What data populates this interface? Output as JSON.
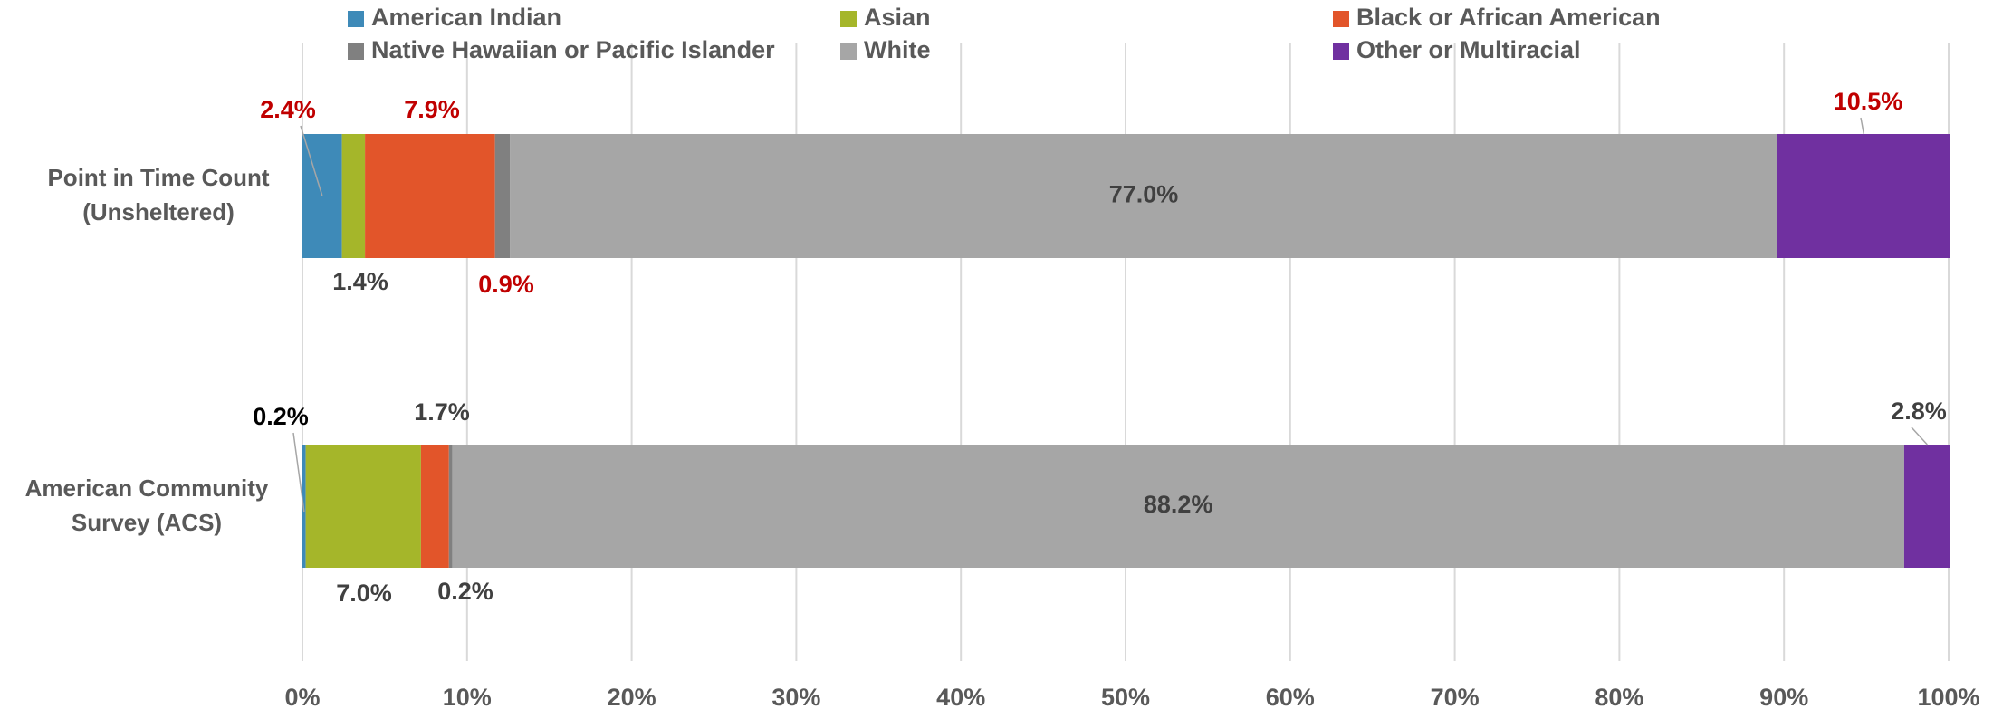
{
  "chart_data": {
    "type": "stacked_barh",
    "categories": [
      "Point in Time Count (Unsheltered)",
      "American Community Survey (ACS)"
    ],
    "series": [
      {
        "name": "American Indian",
        "color": "#3e8ab8",
        "values": [
          2.4,
          0.2
        ],
        "value_labels": [
          "2.4%",
          "0.2%"
        ],
        "label_colors": [
          "#c00000",
          "#000000"
        ]
      },
      {
        "name": "Asian",
        "color": "#a5b62a",
        "values": [
          1.4,
          7.0
        ],
        "value_labels": [
          "1.4%",
          "7.0%"
        ],
        "label_colors": [
          "#404040",
          "#404040"
        ]
      },
      {
        "name": "Black or African American",
        "color": "#e2552a",
        "values": [
          7.9,
          1.7
        ],
        "value_labels": [
          "7.9%",
          "1.7%"
        ],
        "label_colors": [
          "#c00000",
          "#404040"
        ]
      },
      {
        "name": "Native Hawaiian or Pacific Islander",
        "color": "#808080",
        "values": [
          0.9,
          0.2
        ],
        "value_labels": [
          "0.9%",
          "0.2%"
        ],
        "label_colors": [
          "#c00000",
          "#404040"
        ]
      },
      {
        "name": "White",
        "color": "#a6a6a6",
        "values": [
          77.0,
          88.2
        ],
        "value_labels": [
          "77.0%",
          "88.2%"
        ],
        "label_colors": [
          "#404040",
          "#404040"
        ]
      },
      {
        "name": "Other or Multiracial",
        "color": "#7030a0",
        "values": [
          10.5,
          2.8
        ],
        "value_labels": [
          "10.5%",
          "2.8%"
        ],
        "label_colors": [
          "#c00000",
          "#404040"
        ]
      }
    ],
    "xlim": [
      0,
      100
    ],
    "xticks": [
      {
        "value": 0,
        "label": "0%"
      },
      {
        "value": 10,
        "label": "10%"
      },
      {
        "value": 20,
        "label": "20%"
      },
      {
        "value": 30,
        "label": "30%"
      },
      {
        "value": 40,
        "label": "40%"
      },
      {
        "value": 50,
        "label": "50%"
      },
      {
        "value": 60,
        "label": "60%"
      },
      {
        "value": 70,
        "label": "70%"
      },
      {
        "value": 80,
        "label": "80%"
      },
      {
        "value": 90,
        "label": "90%"
      },
      {
        "value": 100,
        "label": "100%"
      }
    ],
    "grid": true
  }
}
